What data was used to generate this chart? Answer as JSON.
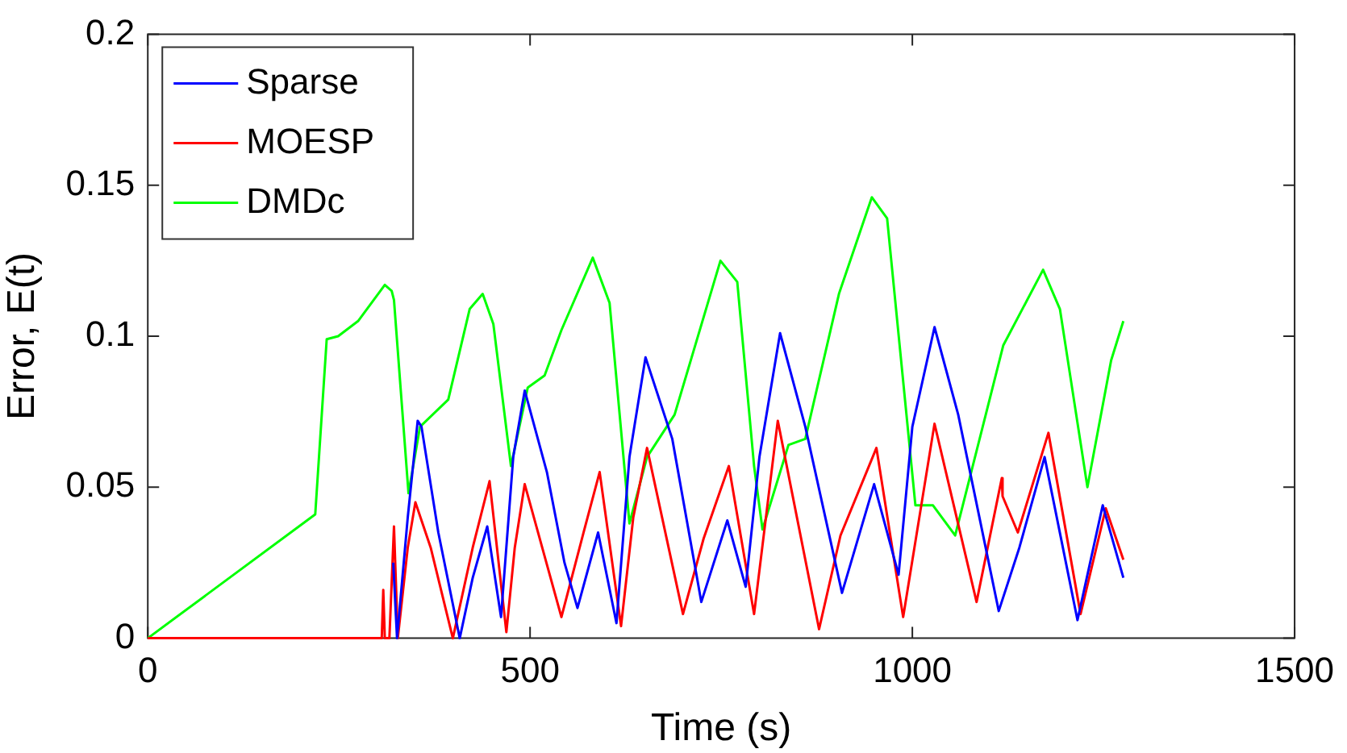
{
  "chart_data": {
    "type": "line",
    "xlabel": "Time (s)",
    "ylabel": "Error, E(t)",
    "xlim": [
      0,
      1500
    ],
    "xticks": [
      0,
      500,
      1000,
      1500
    ],
    "ylim": [
      0,
      0.2
    ],
    "yticks": [
      0,
      0.05,
      0.1,
      0.15,
      0.2
    ],
    "grid": false,
    "legend": "top left",
    "marker": "none",
    "line_style": "solid",
    "series": [
      {
        "name": "Sparse",
        "color": "#0000ff",
        "x": [
          321,
          326,
          340,
          353,
          358,
          380,
          408,
          425,
          444,
          462,
          478,
          493,
          522,
          545,
          562,
          589,
          613,
          630,
          651,
          686,
          724,
          758,
          782,
          800,
          827,
          860,
          908,
          950,
          982,
          1000,
          1029,
          1060,
          1113,
          1140,
          1173,
          1216,
          1249,
          1276
        ],
        "values": [
          0.025,
          0,
          0.04,
          0.072,
          0.07,
          0.035,
          0,
          0.02,
          0.037,
          0.007,
          0.06,
          0.082,
          0.055,
          0.025,
          0.01,
          0.035,
          0.005,
          0.06,
          0.093,
          0.066,
          0.012,
          0.039,
          0.017,
          0.06,
          0.101,
          0.07,
          0.015,
          0.051,
          0.021,
          0.07,
          0.103,
          0.074,
          0.009,
          0.03,
          0.06,
          0.006,
          0.044,
          0.02
        ]
      },
      {
        "name": "MOESP",
        "color": "#ff0000",
        "x": [
          0,
          306,
          308,
          310,
          316,
          322,
          327,
          340,
          350,
          370,
          399,
          425,
          447,
          469,
          480,
          493,
          541,
          570,
          591,
          619,
          635,
          653,
          700,
          727,
          760,
          793,
          824,
          878,
          906,
          953,
          988,
          1029,
          1084,
          1117,
          1118,
          1138,
          1178,
          1220,
          1253,
          1276
        ],
        "values": [
          0,
          0,
          0.016,
          0,
          0,
          0.037,
          0,
          0.03,
          0.045,
          0.03,
          0,
          0.03,
          0.052,
          0.002,
          0.03,
          0.051,
          0.007,
          0.035,
          0.055,
          0.004,
          0.04,
          0.063,
          0.008,
          0.033,
          0.057,
          0.008,
          0.072,
          0.003,
          0.034,
          0.063,
          0.007,
          0.071,
          0.012,
          0.053,
          0.047,
          0.035,
          0.068,
          0.008,
          0.043,
          0.026
        ]
      },
      {
        "name": "DMDc",
        "color": "#00ff00",
        "x": [
          0,
          219,
          234,
          249,
          275,
          310,
          319,
          322,
          341,
          356,
          393,
          421,
          438,
          452,
          475,
          497,
          519,
          541,
          582,
          604,
          630,
          653,
          689,
          749,
          771,
          793,
          804,
          838,
          860,
          904,
          947,
          967,
          1004,
          1027,
          1056,
          1119,
          1171,
          1193,
          1229,
          1260,
          1276
        ],
        "values": [
          0,
          0.041,
          0.099,
          0.1,
          0.105,
          0.117,
          0.115,
          0.112,
          0.048,
          0.07,
          0.079,
          0.109,
          0.114,
          0.104,
          0.057,
          0.083,
          0.087,
          0.102,
          0.126,
          0.111,
          0.038,
          0.06,
          0.074,
          0.125,
          0.118,
          0.057,
          0.036,
          0.064,
          0.066,
          0.114,
          0.146,
          0.139,
          0.044,
          0.044,
          0.034,
          0.097,
          0.122,
          0.109,
          0.05,
          0.092,
          0.105
        ]
      }
    ]
  }
}
